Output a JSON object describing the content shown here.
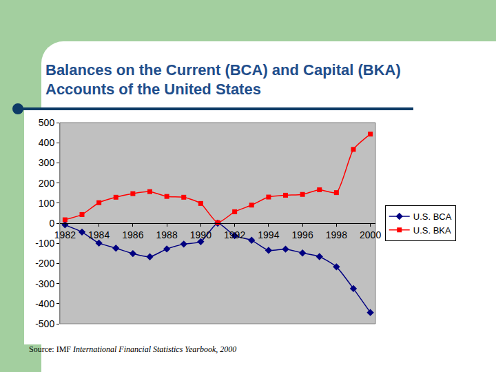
{
  "chart_data": {
    "type": "line",
    "title": "Balances on the Current (BCA) and Capital (BKA) Accounts of the United States",
    "source": {
      "label": "Source: IMF",
      "publication": "International Financial Statistics Yearbook, 2000"
    },
    "x": [
      1982,
      1983,
      1984,
      1985,
      1986,
      1987,
      1988,
      1989,
      1990,
      1991,
      1992,
      1993,
      1994,
      1995,
      1996,
      1997,
      1998,
      1999,
      2000
    ],
    "series": [
      {
        "name": "U.S. BCA",
        "color": "#000080",
        "marker": "diamond",
        "line_style": "smooth",
        "values": [
          -8,
          -44,
          -99,
          -124,
          -151,
          -167,
          -128,
          -104,
          -92,
          0,
          -62,
          -85,
          -135,
          -129,
          -148,
          -166,
          -217,
          -325,
          -444
        ]
      },
      {
        "name": "U.S. BKA",
        "color": "#ff0000",
        "marker": "square",
        "line_style": "smooth",
        "values": [
          17,
          43,
          102,
          129,
          147,
          157,
          133,
          129,
          98,
          3,
          57,
          90,
          130,
          139,
          143,
          166,
          152,
          367,
          443
        ]
      }
    ],
    "xlim": [
      1981.7,
      2000.3
    ],
    "xticks": [
      1982,
      1984,
      1986,
      1988,
      1990,
      1992,
      1994,
      1996,
      1998,
      2000
    ],
    "ylim": [
      -500,
      500
    ],
    "yticks": [
      -500,
      -400,
      -300,
      -200,
      -100,
      0,
      100,
      200,
      300,
      400,
      500
    ],
    "grid": false,
    "legend": "right"
  }
}
